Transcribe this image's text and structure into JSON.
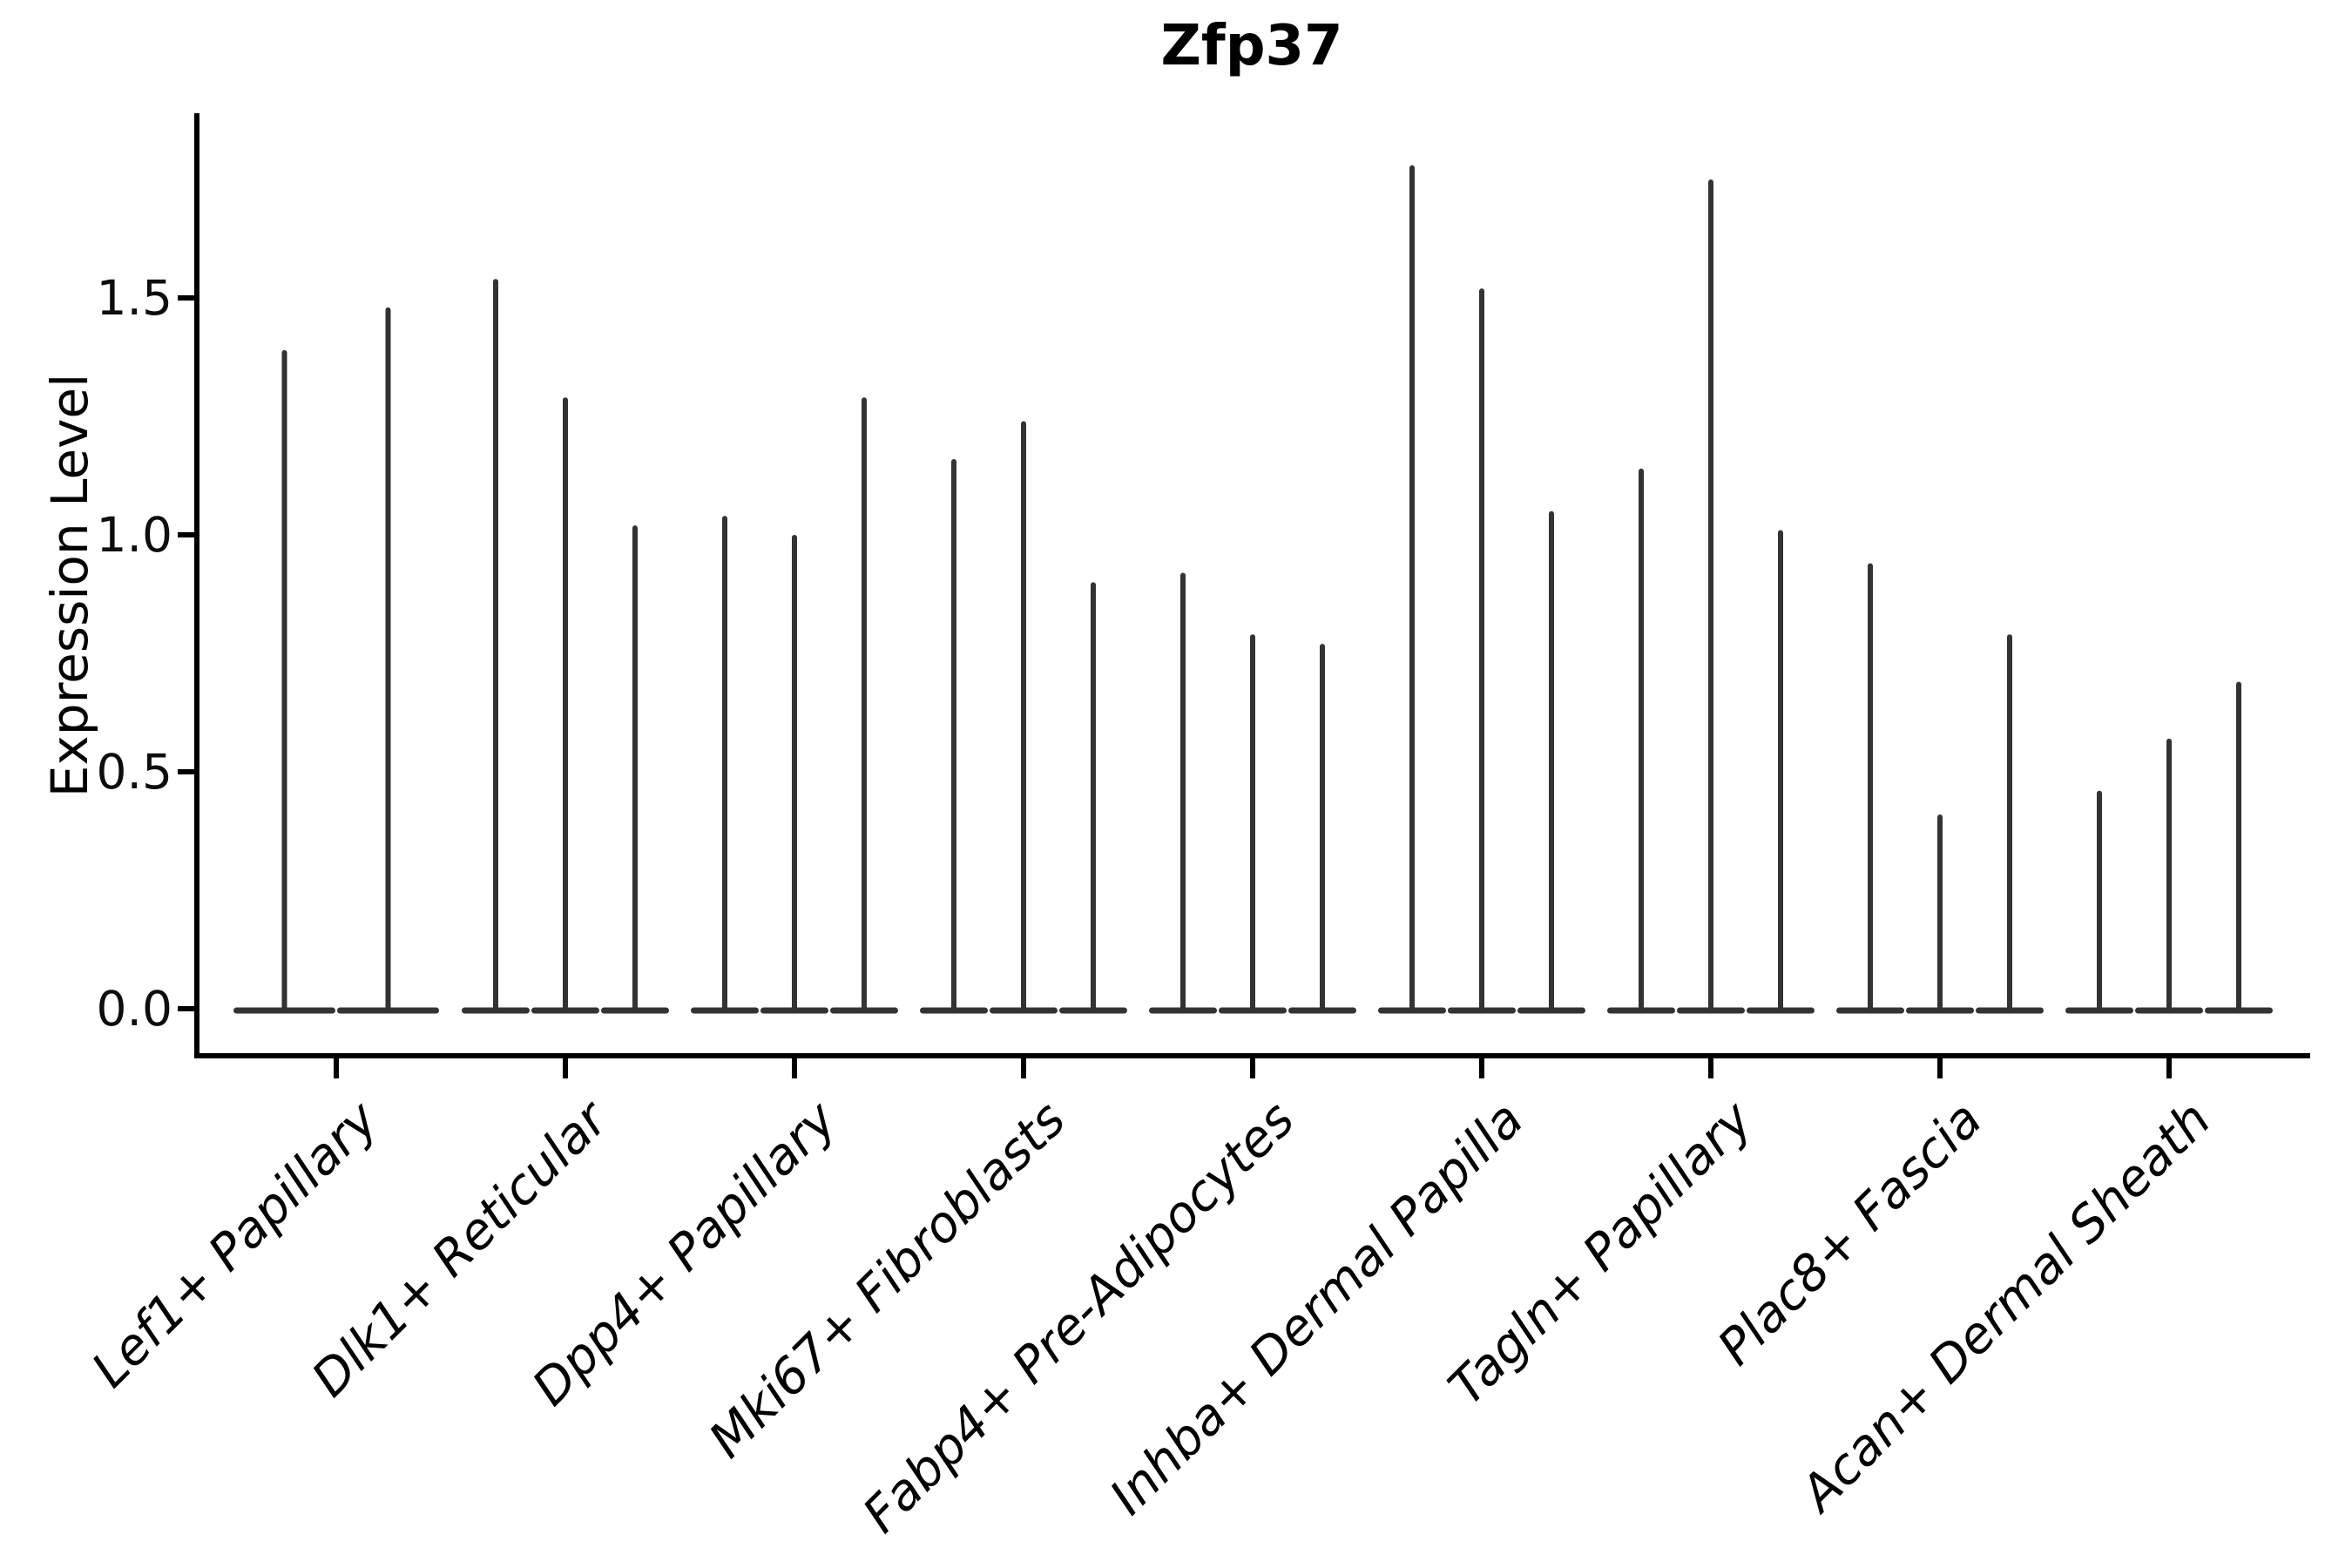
{
  "chart_data": {
    "type": "violin",
    "title": "Zfp37",
    "xlabel": "",
    "ylabel": "Expression Level",
    "ylim": [
      0,
      1.89
    ],
    "yticks": [
      0.0,
      0.5,
      1.0,
      1.5
    ],
    "ytick_labels": [
      "0.0",
      "0.5",
      "1.0",
      "1.5"
    ],
    "grid": false,
    "legend": "none",
    "description": "Single-gene violin plot; each cell-type category shows narrow violins collapsed at 0 with thin density tails reaching the maximum expression value listed.",
    "categories": [
      {
        "label": "Lef1+ Papillary",
        "violin_max_values": [
          1.39,
          1.48
        ]
      },
      {
        "label": "Dlk1+ Reticular",
        "violin_max_values": [
          1.54,
          1.29,
          1.02
        ]
      },
      {
        "label": "Dpp4+ Papillary",
        "violin_max_values": [
          1.04,
          1.0,
          1.29
        ]
      },
      {
        "label": "Mki67+ Fibroblasts",
        "violin_max_values": [
          1.16,
          1.24,
          0.9
        ]
      },
      {
        "label": "Fabp4+ Pre-Adipocytes",
        "violin_max_values": [
          0.92,
          0.79,
          0.77
        ]
      },
      {
        "label": "Inhba+ Dermal Papilla",
        "violin_max_values": [
          1.78,
          1.52,
          1.05
        ]
      },
      {
        "label": "Tagln+ Papillary",
        "violin_max_values": [
          1.14,
          1.75,
          1.01
        ]
      },
      {
        "label": "Plac8+ Fascia",
        "violin_max_values": [
          0.94,
          0.41,
          0.79
        ]
      },
      {
        "label": "Acan+ Dermal Sheath",
        "violin_max_values": [
          0.46,
          0.57,
          0.69
        ]
      }
    ],
    "colors": {
      "violin": "#333333",
      "axis": "#000000",
      "text": "#000000",
      "background": "#ffffff"
    }
  }
}
